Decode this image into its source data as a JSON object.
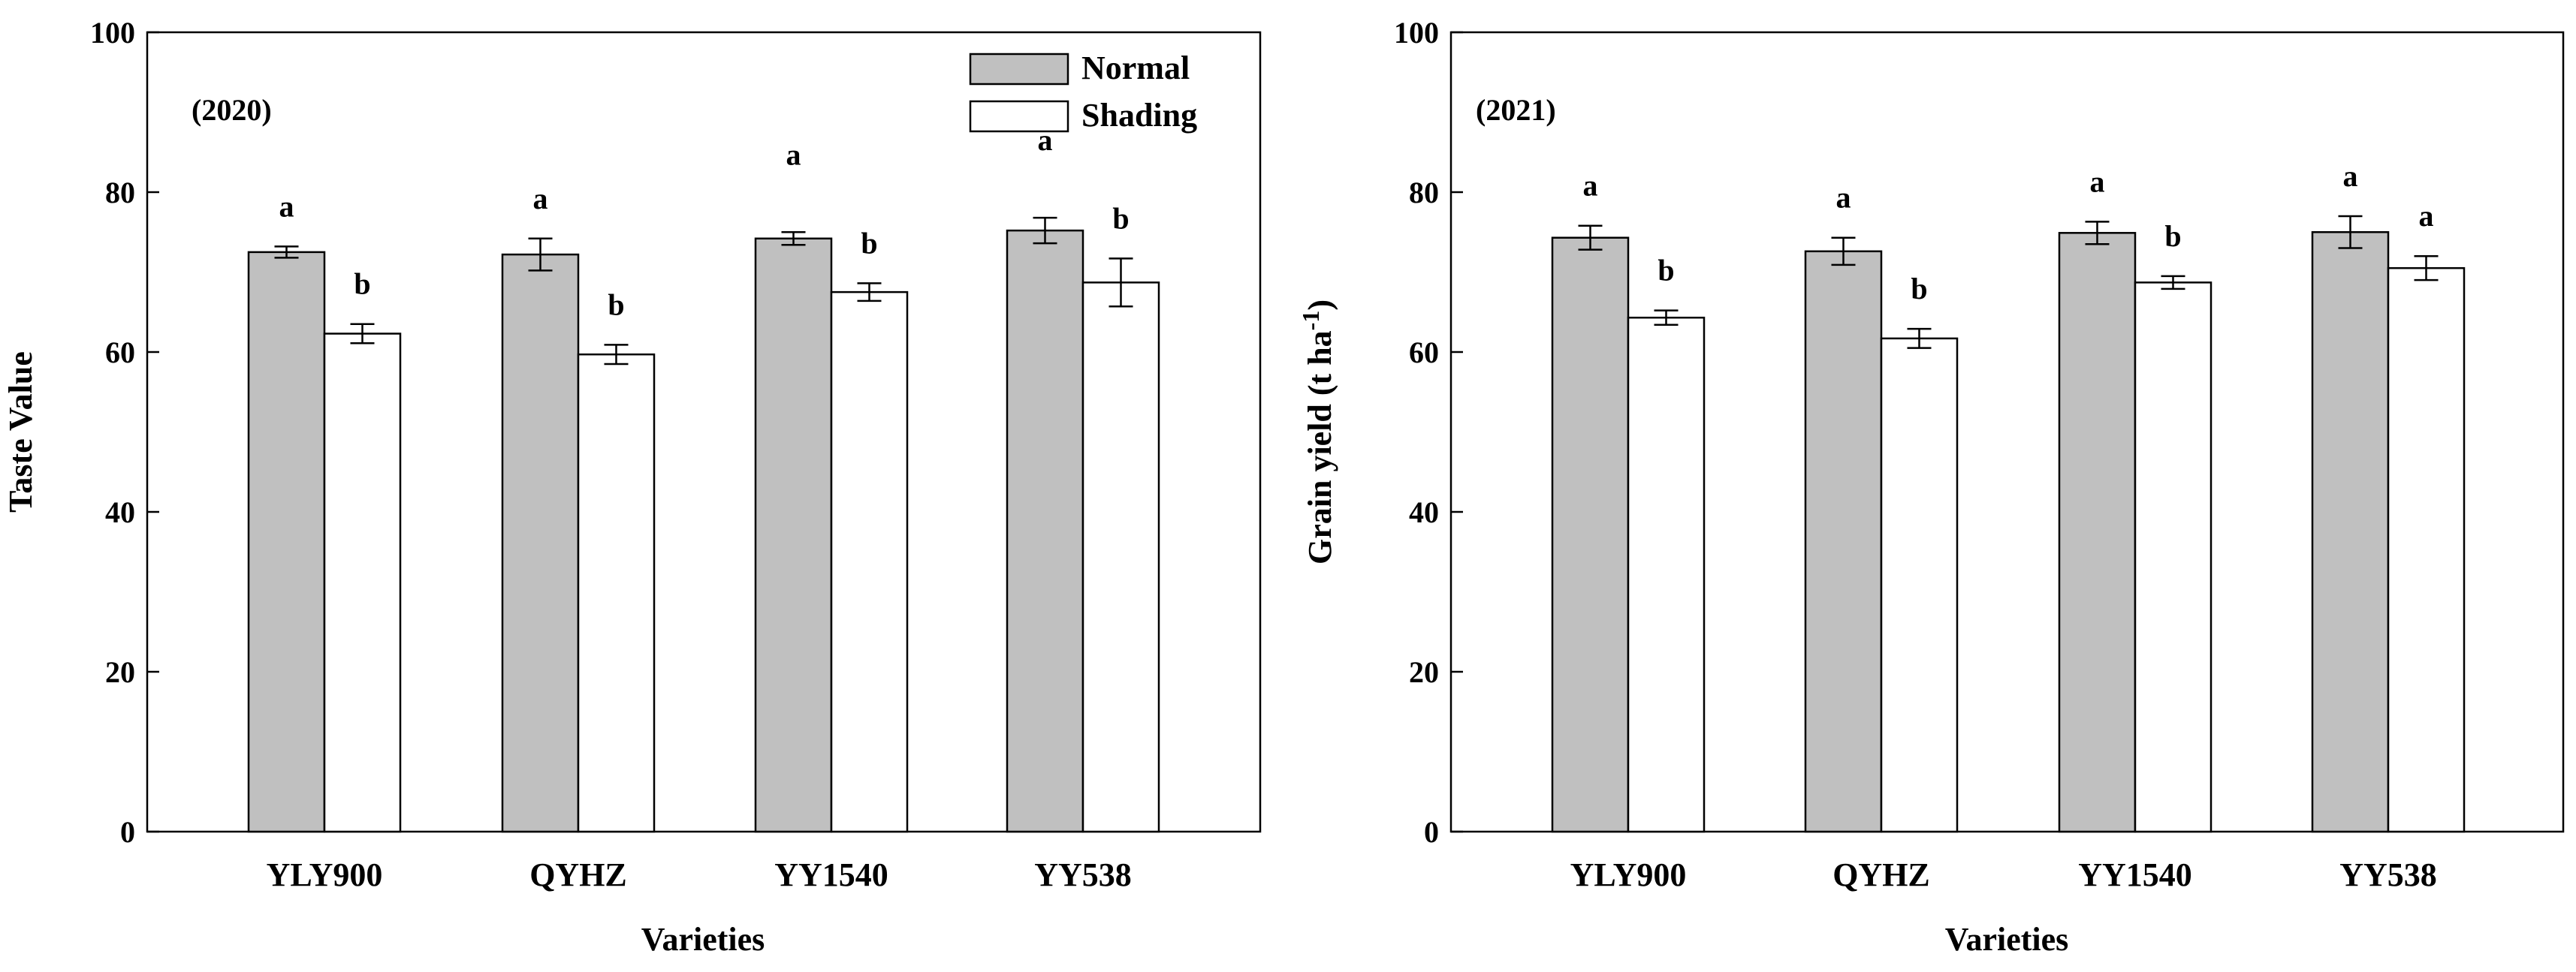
{
  "chart_data": [
    {
      "type": "bar",
      "panel_label": "(2020)",
      "title": "",
      "xlabel": "Varieties",
      "ylabel": "Taste Value",
      "ylim": [
        0,
        100
      ],
      "yticks": [
        "0",
        "20",
        "40",
        "60",
        "80",
        "100"
      ],
      "categories": [
        "YLY900",
        "QYHZ",
        "YY1540",
        "YY538"
      ],
      "legend": {
        "position": "top-right",
        "entries": [
          "Normal",
          "Shading"
        ]
      },
      "series": [
        {
          "name": "Normal",
          "color": "#c0c0c0",
          "values": [
            72.5,
            72.2,
            74.2,
            75.2
          ],
          "errors": [
            0.7,
            2.0,
            0.8,
            1.6
          ],
          "letters": [
            "a",
            "a",
            "a",
            "a"
          ]
        },
        {
          "name": "Shading",
          "color": "#ffffff",
          "values": [
            62.3,
            59.7,
            67.5,
            68.7
          ],
          "errors": [
            1.2,
            1.2,
            1.1,
            3.0
          ],
          "letters": [
            "b",
            "b",
            "b",
            "b"
          ]
        }
      ]
    },
    {
      "type": "bar",
      "panel_label": "(2021)",
      "title": "",
      "xlabel": "Varieties",
      "ylabel_main": "Grain yield (t ha",
      "ylabel_sup": "-1",
      "ylabel_end": ")",
      "ylim": [
        0,
        100
      ],
      "yticks": [
        "0",
        "20",
        "40",
        "60",
        "80",
        "100"
      ],
      "categories": [
        "YLY900",
        "QYHZ",
        "YY1540",
        "YY538"
      ],
      "series": [
        {
          "name": "Normal",
          "color": "#c0c0c0",
          "values": [
            74.3,
            72.6,
            74.9,
            75.0
          ],
          "errors": [
            1.5,
            1.7,
            1.4,
            2.0
          ],
          "letters": [
            "a",
            "a",
            "a",
            "a"
          ]
        },
        {
          "name": "Shading",
          "color": "#ffffff",
          "values": [
            64.3,
            61.7,
            68.7,
            70.5
          ],
          "errors": [
            0.9,
            1.2,
            0.8,
            1.5
          ],
          "letters": [
            "b",
            "b",
            "b",
            "a"
          ]
        }
      ]
    }
  ]
}
